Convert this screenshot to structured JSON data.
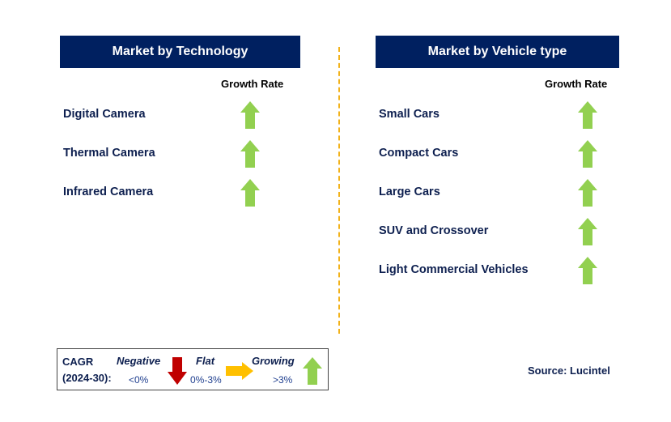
{
  "left": {
    "title": "Market by Technology",
    "growth_label": "Growth Rate",
    "items": [
      {
        "label": "Digital Camera",
        "trend": "up"
      },
      {
        "label": "Thermal Camera",
        "trend": "up"
      },
      {
        "label": "Infrared Camera",
        "trend": "up"
      }
    ]
  },
  "right": {
    "title": "Market by Vehicle type",
    "growth_label": "Growth Rate",
    "items": [
      {
        "label": "Small Cars",
        "trend": "up"
      },
      {
        "label": "Compact Cars",
        "trend": "up"
      },
      {
        "label": "Large Cars",
        "trend": "up"
      },
      {
        "label": "SUV and Crossover",
        "trend": "up"
      },
      {
        "label": "Light Commercial Vehicles",
        "trend": "up"
      }
    ]
  },
  "legend": {
    "cagr": "CAGR",
    "period": "(2024-30):",
    "negative": "Negative",
    "negative_range": "<0%",
    "flat": "Flat",
    "flat_range": "0%-3%",
    "growing": "Growing",
    "growing_range": ">3%"
  },
  "source": "Source: Lucintel",
  "colors": {
    "header": "#002060",
    "up": "#92D050",
    "down": "#C00000",
    "flat": "#FFC000",
    "divider": "#F2B21B"
  }
}
